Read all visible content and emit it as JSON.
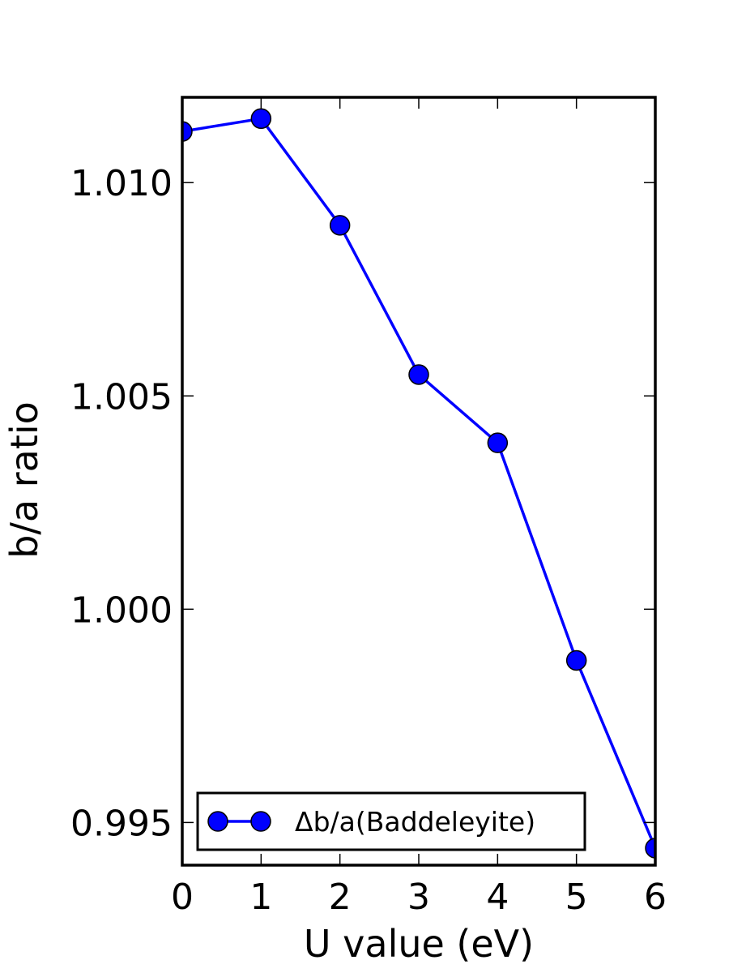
{
  "chart_data": {
    "type": "line",
    "title": "",
    "xlabel": "U value (eV)",
    "ylabel": "b/a ratio",
    "xlim": [
      0,
      6
    ],
    "ylim": [
      0.994,
      1.012
    ],
    "xticks": [
      0,
      1,
      2,
      3,
      4,
      5,
      6
    ],
    "xtick_labels": [
      "0",
      "1",
      "2",
      "3",
      "4",
      "5",
      "6"
    ],
    "yticks": [
      0.995,
      1.0,
      1.005,
      1.01
    ],
    "ytick_labels": [
      "0.995",
      "1.000",
      "1.005",
      "1.010"
    ],
    "grid": false,
    "legend_position": "lower-center",
    "series": [
      {
        "name": "Δb/a(Baddeleyite)",
        "color": "#0000ff",
        "marker": "circle",
        "x": [
          0,
          1,
          2,
          3,
          4,
          5,
          6
        ],
        "y": [
          1.0112,
          1.0115,
          1.009,
          1.0055,
          1.0039,
          0.9988,
          0.9944
        ]
      }
    ]
  }
}
